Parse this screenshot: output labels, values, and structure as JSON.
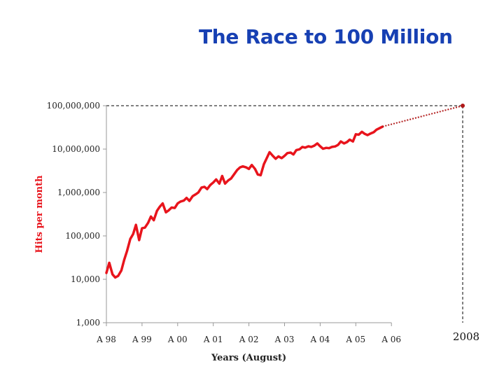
{
  "title": "The Race to 100 Million",
  "colors": {
    "title": "#1740b3",
    "series": "#e8141c",
    "projection": "#b01818",
    "axis": "#999999",
    "guide": "#000000"
  },
  "chart_data": {
    "type": "line",
    "title": "The Race to 100 Million",
    "xlabel": "Years (August)",
    "ylabel": "Hits per month",
    "yscale": "log",
    "ylim": [
      1000,
      100000000
    ],
    "xlim": [
      1998.0,
      2008.0
    ],
    "y_ticks": [
      {
        "value": 1000,
        "label": "1,000"
      },
      {
        "value": 10000,
        "label": "10,000"
      },
      {
        "value": 100000,
        "label": "100,000"
      },
      {
        "value": 1000000,
        "label": "1,000,000"
      },
      {
        "value": 10000000,
        "label": "10,000,000"
      },
      {
        "value": 100000000,
        "label": "100,000,000"
      }
    ],
    "x_ticks": [
      {
        "value": 1998,
        "label": "A 98"
      },
      {
        "value": 1999,
        "label": "A 99"
      },
      {
        "value": 2000,
        "label": "A 00"
      },
      {
        "value": 2001,
        "label": "A 01"
      },
      {
        "value": 2002,
        "label": "A 02"
      },
      {
        "value": 2003,
        "label": "A 03"
      },
      {
        "value": 2004,
        "label": "A 04"
      },
      {
        "value": 2005,
        "label": "A 05"
      },
      {
        "value": 2006,
        "label": "A 06"
      }
    ],
    "year_marker": {
      "value": 2008,
      "label": "2008"
    },
    "grid": false,
    "legend": "none",
    "series": [
      {
        "x": [
          1998.0,
          1998.08,
          1998.17,
          1998.25,
          1998.33,
          1998.42,
          1998.5,
          1998.58,
          1998.67,
          1998.75,
          1998.83,
          1998.92,
          1999.0,
          1999.08,
          1999.17,
          1999.25,
          1999.33,
          1999.42,
          1999.5,
          1999.58,
          1999.67,
          1999.75,
          1999.83,
          1999.92,
          2000.0,
          2000.08,
          2000.17,
          2000.25,
          2000.33,
          2000.42,
          2000.5,
          2000.58,
          2000.67,
          2000.75,
          2000.83,
          2000.92,
          2001.0,
          2001.08,
          2001.17,
          2001.25,
          2001.33,
          2001.42,
          2001.5,
          2001.58,
          2001.67,
          2001.75,
          2001.83,
          2001.92,
          2002.0,
          2002.08,
          2002.17,
          2002.25,
          2002.33,
          2002.42,
          2002.5,
          2002.58,
          2002.67,
          2002.75,
          2002.83,
          2002.92,
          2003.0,
          2003.08,
          2003.17,
          2003.25,
          2003.33,
          2003.42,
          2003.5,
          2003.58,
          2003.67,
          2003.75,
          2003.83,
          2003.92,
          2004.0,
          2004.08,
          2004.17,
          2004.25,
          2004.33,
          2004.42,
          2004.5,
          2004.58,
          2004.67,
          2004.75,
          2004.83,
          2004.92,
          2005.0,
          2005.08,
          2005.17,
          2005.25,
          2005.33,
          2005.42,
          2005.5,
          2005.58,
          2005.67,
          2005.75
        ],
        "y": [
          14000,
          24000,
          13000,
          11000,
          12000,
          16000,
          28000,
          45000,
          85000,
          110000,
          180000,
          80000,
          150000,
          155000,
          200000,
          280000,
          230000,
          380000,
          470000,
          560000,
          350000,
          390000,
          450000,
          440000,
          560000,
          620000,
          650000,
          750000,
          640000,
          820000,
          900000,
          1000000,
          1300000,
          1350000,
          1200000,
          1500000,
          1700000,
          2000000,
          1600000,
          2400000,
          1600000,
          1900000,
          2100000,
          2600000,
          3300000,
          3800000,
          4000000,
          3800000,
          3500000,
          4300000,
          3500000,
          2600000,
          2500000,
          4500000,
          6200000,
          8500000,
          7000000,
          6000000,
          6800000,
          6200000,
          7000000,
          8100000,
          8300000,
          7500000,
          9500000,
          9900000,
          11200000,
          10800000,
          11600000,
          11200000,
          11900000,
          13500000,
          11600000,
          10200000,
          10700000,
          10500000,
          11200000,
          11500000,
          12500000,
          15000000,
          13500000,
          14500000,
          16500000,
          15000000,
          22000000,
          21500000,
          25000000,
          22500000,
          21000000,
          23000000,
          24500000,
          28000000,
          30500000,
          33000000
        ]
      }
    ],
    "projection": {
      "x": [
        2005.75,
        2008.0
      ],
      "y": [
        33000000,
        100000000
      ]
    }
  },
  "icons": {
    "projection_endpoint": "circle-dot"
  }
}
